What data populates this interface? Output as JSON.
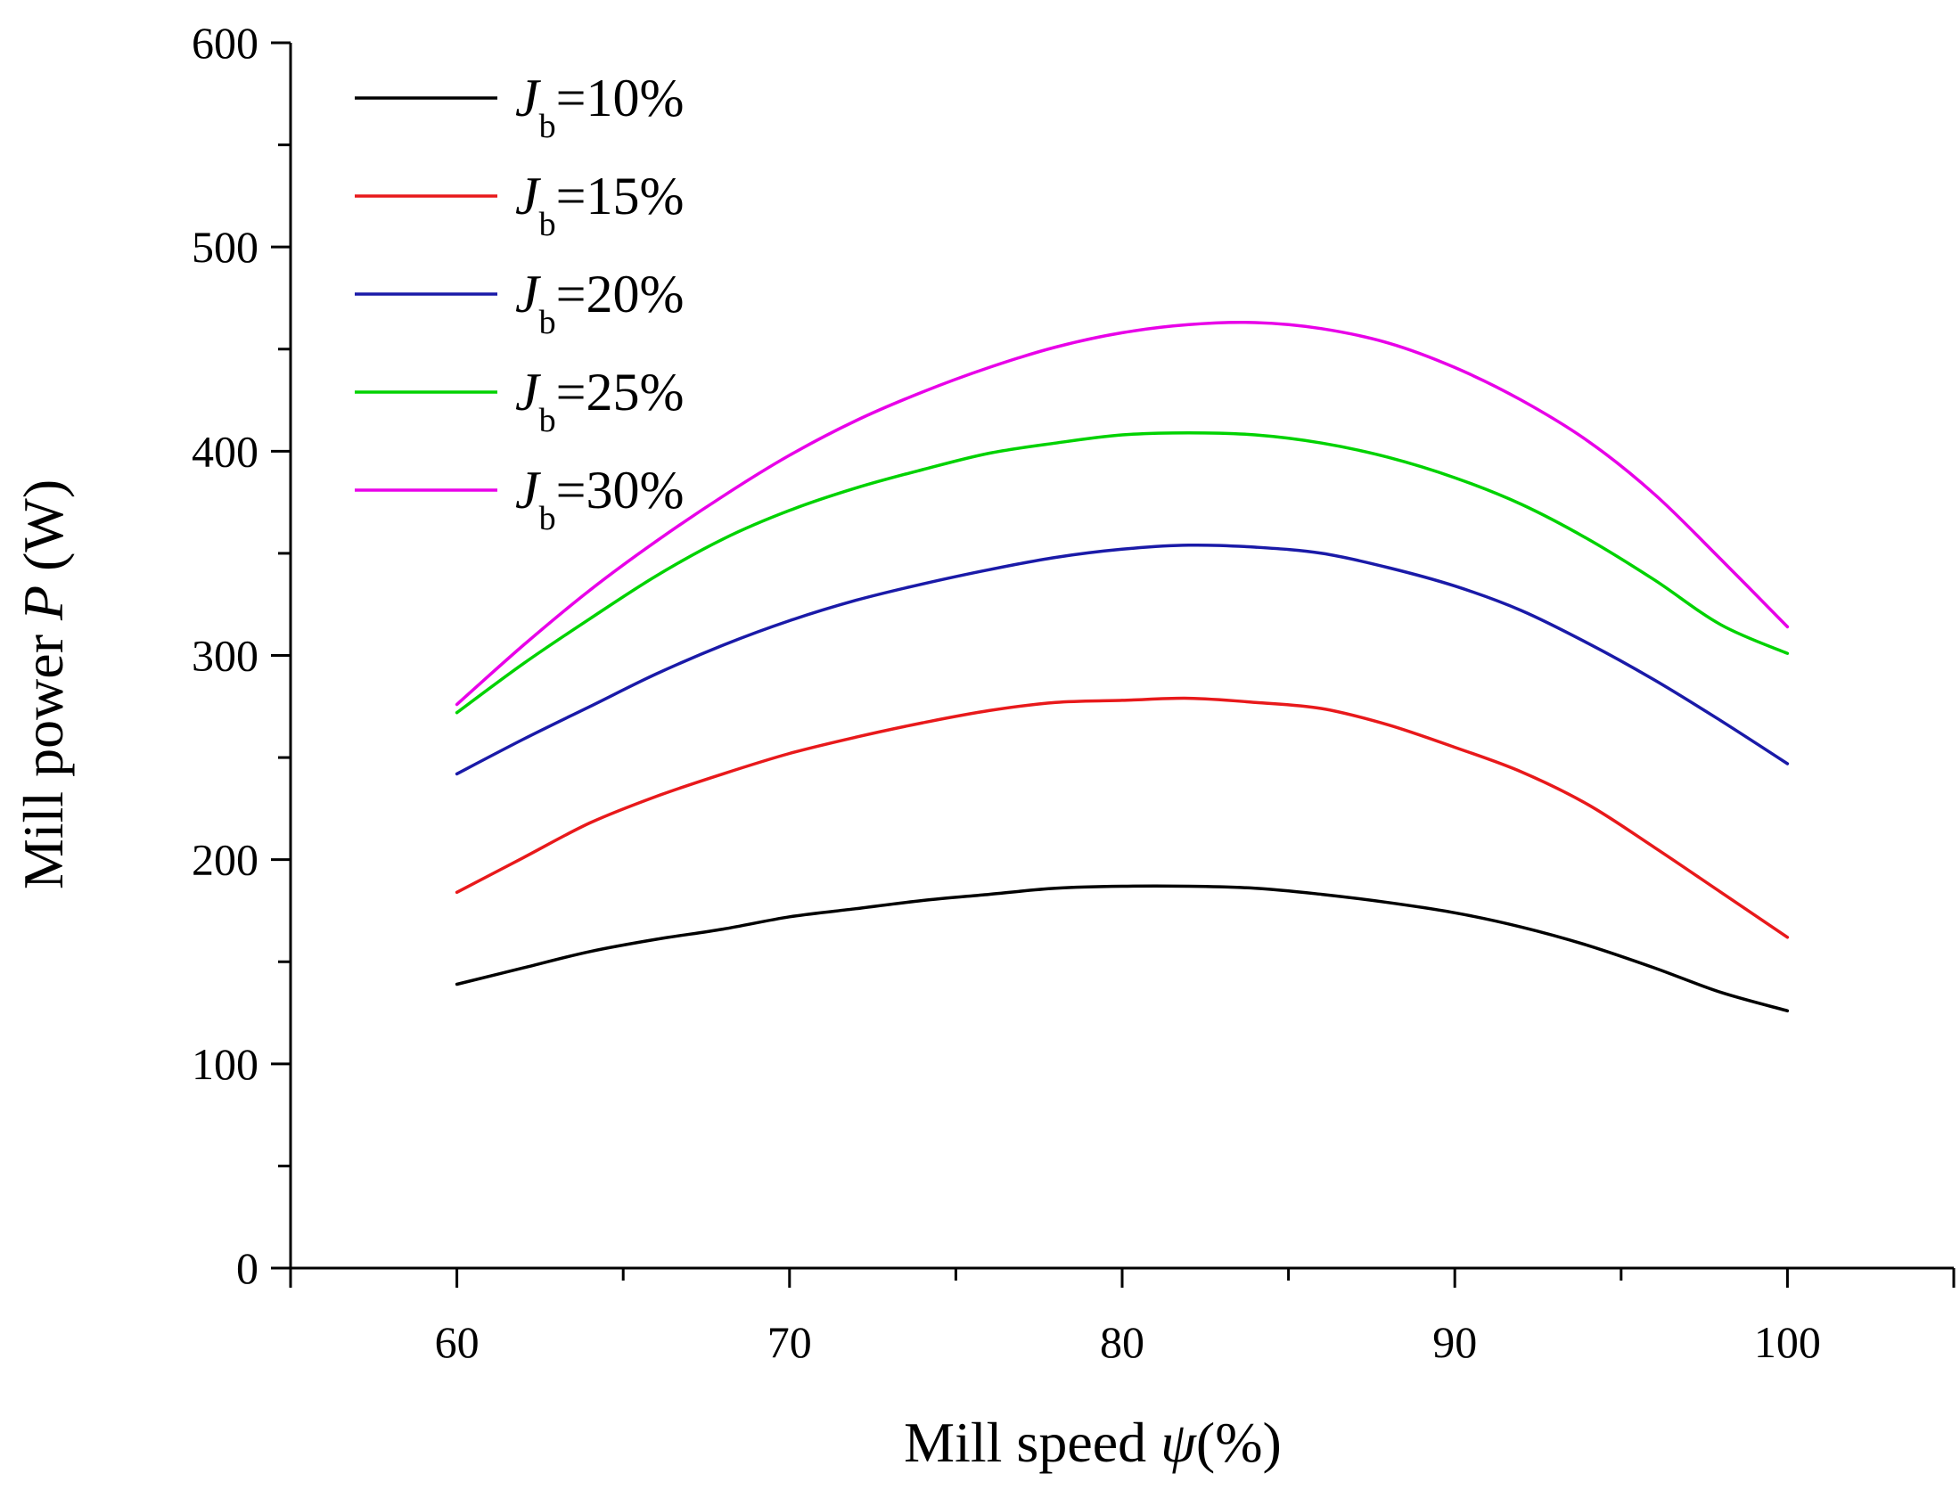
{
  "chart_data": {
    "type": "line",
    "title": "",
    "xlabel": {
      "prefix": "Mill speed ",
      "symbol": "ψ",
      "suffix": "(%)"
    },
    "ylabel": {
      "prefix": "Mill power ",
      "symbol": "P",
      "suffix": " (W)"
    },
    "xlim": [
      55,
      105
    ],
    "ylim": [
      0,
      600
    ],
    "xticks": [
      60,
      70,
      80,
      90,
      100
    ],
    "yticks": [
      0,
      100,
      200,
      300,
      400,
      500,
      600
    ],
    "grid": false,
    "legend_position": "top-left",
    "x": [
      60,
      62,
      64,
      66,
      68,
      70,
      72,
      74,
      76,
      78,
      80,
      82,
      84,
      86,
      88,
      90,
      92,
      94,
      96,
      98,
      100
    ],
    "series": [
      {
        "name": "J_b=10%",
        "legend": {
          "symbol": "J",
          "sub": "b",
          "value": "=10%"
        },
        "color": "#000000",
        "values": [
          139,
          147,
          155,
          161,
          166,
          172,
          176,
          180,
          183,
          186,
          187,
          187,
          186,
          183,
          179,
          174,
          167,
          158,
          147,
          135,
          126
        ]
      },
      {
        "name": "J_b=15%",
        "legend": {
          "symbol": "J",
          "sub": "b",
          "value": "=15%"
        },
        "color": "#e8191b",
        "values": [
          184,
          201,
          218,
          231,
          242,
          252,
          260,
          267,
          273,
          277,
          278,
          279,
          277,
          274,
          266,
          255,
          243,
          227,
          206,
          184,
          162
        ]
      },
      {
        "name": "J_b=20%",
        "legend": {
          "symbol": "J",
          "sub": "b",
          "value": "=20%"
        },
        "color": "#1a1aa8",
        "values": [
          242,
          259,
          275,
          291,
          305,
          317,
          327,
          335,
          342,
          348,
          352,
          354,
          353,
          350,
          343,
          334,
          322,
          306,
          288,
          268,
          247
        ]
      },
      {
        "name": "J_b=25%",
        "legend": {
          "symbol": "J",
          "sub": "b",
          "value": "=25%"
        },
        "color": "#00d200",
        "values": [
          272,
          296,
          318,
          339,
          357,
          371,
          382,
          391,
          399,
          404,
          408,
          409,
          408,
          404,
          397,
          387,
          374,
          357,
          337,
          315,
          301
        ]
      },
      {
        "name": "J_b=30%",
        "legend": {
          "symbol": "J",
          "sub": "b",
          "value": "=30%"
        },
        "color": "#e800e8",
        "values": [
          276,
          305,
          332,
          356,
          378,
          398,
          415,
          429,
          441,
          451,
          458,
          462,
          463,
          460,
          453,
          441,
          425,
          405,
          379,
          347,
          314
        ]
      }
    ]
  }
}
